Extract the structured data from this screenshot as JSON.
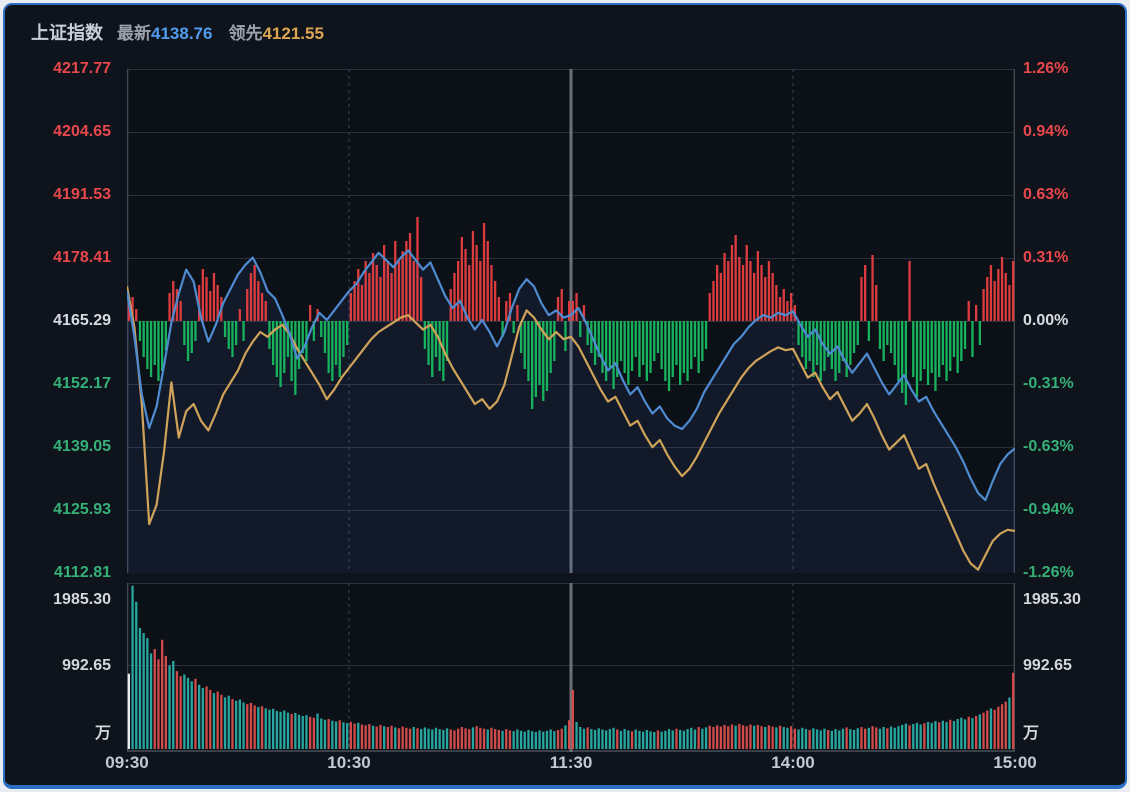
{
  "header": {
    "title": "上证指数",
    "latest_label": "最新",
    "latest_value": "4138.76",
    "lead_label": "领先",
    "lead_value": "4121.55"
  },
  "colors": {
    "up": "#e8474c",
    "down": "#35b077",
    "flat": "#d8dce4",
    "price_line": "#4e8bd0",
    "lead_line": "#cfa35a",
    "hist_up": "#dc3c3e",
    "hist_down": "#17b35c",
    "vol_up": "#d14b4b",
    "vol_down": "#27a69f",
    "vol_first": "#e8ebf0",
    "grid": "#2b303a",
    "grid_dashed": "#39404b",
    "divider": "#6b7179",
    "border": "#4a515c",
    "plot_bg": "#0c1017",
    "area_fill": "rgba(55,95,165,0.14)"
  },
  "chart_data": {
    "type": "line",
    "title": "上证指数 intraday (time-share) chart with volume",
    "x_axis": {
      "labels": [
        "09:30",
        "10:30",
        "11:30",
        "14:00",
        "15:00"
      ],
      "minutes": 240
    },
    "y_axis_price": {
      "min": 4112.81,
      "max": 4217.77,
      "prev_close": 4165.29,
      "ticks": [
        {
          "text": "4217.77",
          "tone": "up"
        },
        {
          "text": "4204.65",
          "tone": "up"
        },
        {
          "text": "4191.53",
          "tone": "up"
        },
        {
          "text": "4178.41",
          "tone": "up"
        },
        {
          "text": "4165.29",
          "tone": "flat"
        },
        {
          "text": "4152.17",
          "tone": "down"
        },
        {
          "text": "4139.05",
          "tone": "down"
        },
        {
          "text": "4125.93",
          "tone": "down"
        },
        {
          "text": "4112.81",
          "tone": "down"
        }
      ]
    },
    "y_axis_pct": {
      "ticks": [
        {
          "text": "1.26%",
          "tone": "up"
        },
        {
          "text": "0.94%",
          "tone": "up"
        },
        {
          "text": "0.63%",
          "tone": "up"
        },
        {
          "text": "0.31%",
          "tone": "up"
        },
        {
          "text": "0.00%",
          "tone": "flat"
        },
        {
          "text": "-0.31%",
          "tone": "down"
        },
        {
          "text": "-0.63%",
          "tone": "down"
        },
        {
          "text": "-0.94%",
          "tone": "down"
        },
        {
          "text": "-1.26%",
          "tone": "down"
        }
      ]
    },
    "series": [
      {
        "name": "price",
        "close": 4138.76,
        "values": [
          4171.5,
          4162,
          4150,
          4143,
          4147.5,
          4156,
          4165,
          4171,
          4176,
          4173.5,
          4166,
          4161,
          4164.5,
          4169,
          4172,
          4175,
          4177,
          4178.5,
          4175.5,
          4171.5,
          4170,
          4166.5,
          4162.5,
          4157.5,
          4160,
          4164,
          4167,
          4165.5,
          4167.5,
          4169.5,
          4171.5,
          4173,
          4175.5,
          4177.5,
          4179.5,
          4178,
          4176.5,
          4178.5,
          4180,
          4178,
          4176,
          4177.5,
          4174,
          4170.5,
          4168,
          4169.5,
          4166,
          4163.5,
          4165.5,
          4163,
          4160,
          4163,
          4168,
          4172,
          4174,
          4172.5,
          4169,
          4166.5,
          4167.5,
          4166,
          4166.5,
          4168,
          4165,
          4161.5,
          4158,
          4155,
          4156.5,
          4153,
          4150,
          4151.5,
          4148.5,
          4146,
          4147.5,
          4145,
          4143.5,
          4142.8,
          4144.5,
          4147,
          4150.5,
          4153,
          4155.5,
          4158,
          4160.5,
          4162,
          4164,
          4165.5,
          4166.5,
          4166,
          4167,
          4166.5,
          4167.3,
          4164.5,
          4162,
          4163.5,
          4160.5,
          4158.5,
          4160,
          4157,
          4154.5,
          4156.5,
          4158.5,
          4155.5,
          4152.5,
          4150,
          4152,
          4154,
          4151,
          4148.5,
          4149.5,
          4146.5,
          4144,
          4141.5,
          4139,
          4136,
          4132.5,
          4129.5,
          4128,
          4132,
          4135.5,
          4137.5,
          4138.76
        ]
      },
      {
        "name": "lead",
        "close": 4121.55,
        "values": [
          4172.5,
          4164,
          4148,
          4123,
          4127,
          4138,
          4152.5,
          4141,
          4146.5,
          4148,
          4144.5,
          4142.5,
          4146,
          4150,
          4152.5,
          4155,
          4158.5,
          4161,
          4163,
          4162,
          4163.5,
          4164.5,
          4162.5,
          4159.5,
          4157,
          4154.5,
          4152,
          4149,
          4151,
          4153.5,
          4155.5,
          4157.5,
          4159.5,
          4161.5,
          4163,
          4164,
          4165,
          4166,
          4166.5,
          4165,
          4163.5,
          4164.5,
          4162,
          4158.5,
          4155.5,
          4153,
          4150.5,
          4148,
          4149,
          4147,
          4148.5,
          4152,
          4158,
          4164,
          4167.5,
          4166,
          4163.5,
          4161.5,
          4163,
          4161.5,
          4162,
          4160,
          4157,
          4154,
          4151,
          4148.5,
          4149.5,
          4146.5,
          4143.5,
          4144.5,
          4141.5,
          4139,
          4140.5,
          4137.5,
          4135,
          4133,
          4134.5,
          4137,
          4140,
          4143,
          4146,
          4148.5,
          4151,
          4153.5,
          4155.5,
          4157,
          4158,
          4159,
          4159.8,
          4159.2,
          4159.5,
          4156.5,
          4153.5,
          4154.5,
          4151.5,
          4149,
          4150.5,
          4147.5,
          4144.5,
          4146,
          4148,
          4145,
          4141.5,
          4138.5,
          4140,
          4141.5,
          4138,
          4134.5,
          4135.5,
          4131.5,
          4128,
          4124.5,
          4121,
          4117.5,
          4114.8,
          4113.5,
          4116.5,
          4119.5,
          4121,
          4121.8,
          4121.55
        ]
      }
    ],
    "histogram_bp": [
      8,
      12,
      6,
      -10,
      -18,
      -24,
      -28,
      -22,
      -30,
      -25,
      -15,
      14,
      20,
      16,
      10,
      -12,
      -20,
      -16,
      -10,
      18,
      26,
      22,
      15,
      24,
      18,
      12,
      -8,
      -14,
      -18,
      -12,
      6,
      -10,
      16,
      24,
      28,
      20,
      14,
      10,
      -14,
      -22,
      -28,
      -33,
      -26,
      -18,
      -30,
      -37,
      -24,
      -16,
      -20,
      8,
      -10,
      6,
      -8,
      -16,
      -26,
      -30,
      -22,
      -28,
      -18,
      -12,
      14,
      20,
      26,
      18,
      30,
      24,
      34,
      28,
      22,
      38,
      30,
      24,
      40,
      30,
      35,
      40,
      44,
      30,
      52,
      22,
      -14,
      -22,
      -28,
      -18,
      -25,
      -30,
      -20,
      16,
      24,
      30,
      42,
      36,
      28,
      45,
      38,
      30,
      49,
      40,
      28,
      20,
      12,
      -8,
      10,
      14,
      -6,
      8,
      -16,
      -24,
      -30,
      -44,
      -38,
      -32,
      -40,
      -35,
      -26,
      -20,
      12,
      16,
      -15,
      10,
      10,
      14,
      -8,
      8,
      -12,
      -16,
      -22,
      -18,
      -26,
      -30,
      -24,
      -34,
      -28,
      -20,
      -26,
      -32,
      -25,
      -18,
      -28,
      -22,
      -30,
      -26,
      -20,
      -16,
      -24,
      -30,
      -35,
      -28,
      -22,
      -32,
      -26,
      -30,
      -24,
      -18,
      -26,
      -20,
      -14,
      14,
      20,
      28,
      24,
      34,
      30,
      38,
      43,
      32,
      28,
      38,
      30,
      24,
      35,
      28,
      22,
      30,
      24,
      18,
      12,
      16,
      10,
      14,
      8,
      -12,
      -18,
      -24,
      -20,
      -28,
      -22,
      -30,
      -25,
      -18,
      -24,
      -30,
      -26,
      -20,
      -28,
      -22,
      -16,
      -12,
      22,
      28,
      -10,
      33,
      18,
      -14,
      -20,
      -12,
      -16,
      -22,
      -30,
      -36,
      -42,
      30,
      -28,
      -38,
      -30,
      -24,
      -32,
      -26,
      -35,
      -28,
      -22,
      -30,
      -25,
      -18,
      -26,
      -20,
      -14,
      10,
      -18,
      8,
      -12,
      16,
      22,
      28,
      20,
      26,
      32,
      24,
      18,
      30
    ],
    "volume": {
      "unit": "万",
      "axis_max": 1985.3,
      "ticks": [
        "1985.30",
        "992.65"
      ],
      "values": [
        890,
        1930,
        1740,
        1430,
        1370,
        1310,
        1130,
        1180,
        1060,
        1290,
        1100,
        990,
        1040,
        920,
        860,
        880,
        840,
        800,
        830,
        760,
        720,
        740,
        700,
        660,
        680,
        640,
        610,
        630,
        590,
        570,
        585,
        550,
        530,
        545,
        515,
        495,
        505,
        480,
        465,
        475,
        450,
        440,
        455,
        430,
        415,
        425,
        405,
        390,
        400,
        380,
        370,
        420,
        360,
        345,
        355,
        335,
        325,
        340,
        315,
        305,
        320,
        300,
        310,
        290,
        280,
        295,
        275,
        265,
        285,
        270,
        260,
        275,
        255,
        245,
        265,
        250,
        240,
        260,
        245,
        235,
        255,
        240,
        230,
        250,
        235,
        225,
        245,
        230,
        220,
        240,
        260,
        245,
        235,
        255,
        270,
        250,
        240,
        230,
        250,
        235,
        225,
        215,
        235,
        220,
        210,
        230,
        215,
        205,
        225,
        210,
        200,
        220,
        205,
        215,
        230,
        210,
        225,
        240,
        280,
        340,
        700,
        320,
        260,
        240,
        255,
        235,
        225,
        245,
        230,
        220,
        235,
        250,
        230,
        215,
        235,
        220,
        210,
        230,
        215,
        205,
        225,
        210,
        200,
        220,
        205,
        215,
        235,
        220,
        240,
        225,
        215,
        235,
        250,
        230,
        260,
        240,
        255,
        275,
        260,
        280,
        265,
        285,
        270,
        290,
        275,
        295,
        280,
        270,
        290,
        275,
        285,
        270,
        260,
        280,
        265,
        255,
        275,
        260,
        250,
        270,
        240,
        230,
        250,
        235,
        225,
        245,
        230,
        220,
        240,
        225,
        215,
        235,
        220,
        240,
        255,
        235,
        225,
        245,
        260,
        240,
        250,
        270,
        255,
        240,
        260,
        245,
        265,
        250,
        270,
        285,
        300,
        280,
        295,
        310,
        290,
        305,
        320,
        310,
        330,
        315,
        335,
        320,
        345,
        330,
        355,
        370,
        350,
        380,
        365,
        390,
        410,
        430,
        455,
        480,
        465,
        500,
        530,
        560,
        610,
        900
      ],
      "bar_colors": [
        "wttttttrrr",
        "rttrrtttrt",
        "trrtrrttrt",
        "ttrrrtrttt",
        "ttttrttttr",
        "rtttrttrtt",
        "rrtrrrtrrt",
        "rrtrrrrtrt",
        "tttttttrrr",
        "rrrtrrrtrr",
        "rtrrtttttt",
        "ttttttrrtr",
        "rtttrttttt",
        "ttrtttrttt",
        "tttrttttrt",
        "ttttrttrrr",
        "rrrrtrrrrt",
        "rrtrrtrttr",
        "rtttrttttr",
        "ttttrtttrr",
        "trrttrtttt",
        "trtttrtttr",
        "ttrttttrtr",
        "trrtrrrrtr"
      ]
    }
  }
}
